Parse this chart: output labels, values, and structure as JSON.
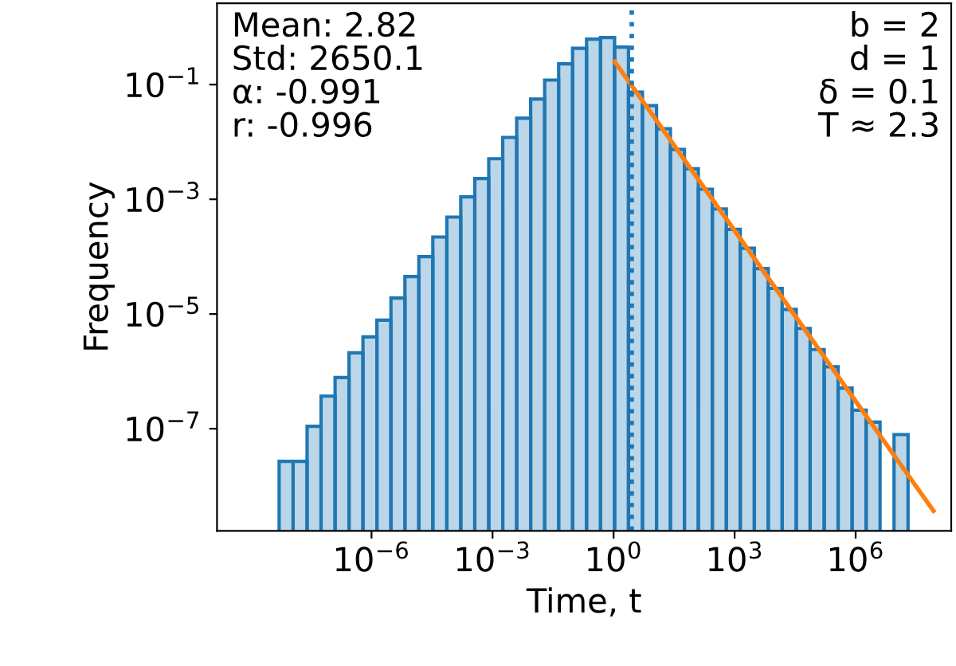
{
  "chart_data": {
    "type": "histogram",
    "xlabel": "Time, t",
    "ylabel": "Frequency",
    "log": "xy",
    "xlim": [
      1.48e-10,
      234000000.0
    ],
    "ylim": [
      1.66e-09,
      2.61
    ],
    "xticks": [
      {
        "value": 1e-06,
        "label": "10$^{−6}$"
      },
      {
        "value": 0.001,
        "label": "10$^{−3}$"
      },
      {
        "value": 1,
        "label": "10$^{0}$"
      },
      {
        "value": 1000.0,
        "label": "10$^{3}$"
      },
      {
        "value": 1000000.0,
        "label": "10$^{6}$"
      }
    ],
    "yticks": [
      {
        "value": 1e-07,
        "label": "10$^{−7}$"
      },
      {
        "value": 1e-05,
        "label": "10$^{−5}$"
      },
      {
        "value": 0.001,
        "label": "10$^{−3}$"
      },
      {
        "value": 0.1,
        "label": "10$^{−1}$"
      }
    ],
    "series": [
      {
        "color": "#1f77b4",
        "bins": [
          5.13e-09,
          1.14e-08,
          2.53e-08,
          5.61e-08,
          1.25e-07,
          2.77e-07,
          6.14e-07,
          1.36e-06,
          3.03e-06,
          6.73e-06,
          1.49e-05,
          3.31e-05,
          7.36e-05,
          0.000163,
          0.000363,
          0.000805,
          0.00179,
          0.00397,
          0.00881,
          0.0196,
          0.0435,
          0.0964,
          0.214,
          0.475,
          1.06,
          2.34,
          5.2,
          11.6,
          25.6,
          57.0,
          126,
          281,
          624,
          1380,
          3080,
          6820,
          15100,
          33700,
          74600,
          166000,
          368000,
          817000,
          1820000,
          4030000,
          8950000,
          19900000
        ],
        "values": [
          2.7e-08,
          2.7e-08,
          1.1e-07,
          3.7e-07,
          7.8e-07,
          2.1e-06,
          4e-06,
          7.8e-06,
          1.9e-05,
          4.5e-05,
          0.0001,
          0.00022,
          0.00049,
          0.0011,
          0.0023,
          0.0051,
          0.012,
          0.026,
          0.056,
          0.12,
          0.23,
          0.43,
          0.62,
          0.66,
          0.45,
          0.074,
          0.043,
          0.017,
          0.0074,
          0.0034,
          0.0015,
          0.00068,
          0.0003,
          0.00014,
          6.2e-05,
          2.8e-05,
          1.2e-05,
          5.6e-06,
          2.4e-06,
          1.2e-06,
          5.1e-07,
          2.1e-07,
          1.3e-07,
          null,
          7.9e-08
        ]
      },
      {
        "type": "line",
        "color": "#ff7f0e",
        "x": [
          1.07,
          85000000.0
        ],
        "values": [
          0.25,
          3.7e-09
        ]
      }
    ],
    "ref_lines": [
      {
        "axis": "x",
        "value": 2.82,
        "color": "#1f77b4",
        "line_style": "dotted"
      }
    ],
    "annotations": [
      "Mean: 2.82\nStd: 2650.1\nα: -0.991\nr: -0.996",
      "b = 2\nd = 1\nδ = 0.1\nT ≈ 2.3"
    ],
    "grid": false
  }
}
